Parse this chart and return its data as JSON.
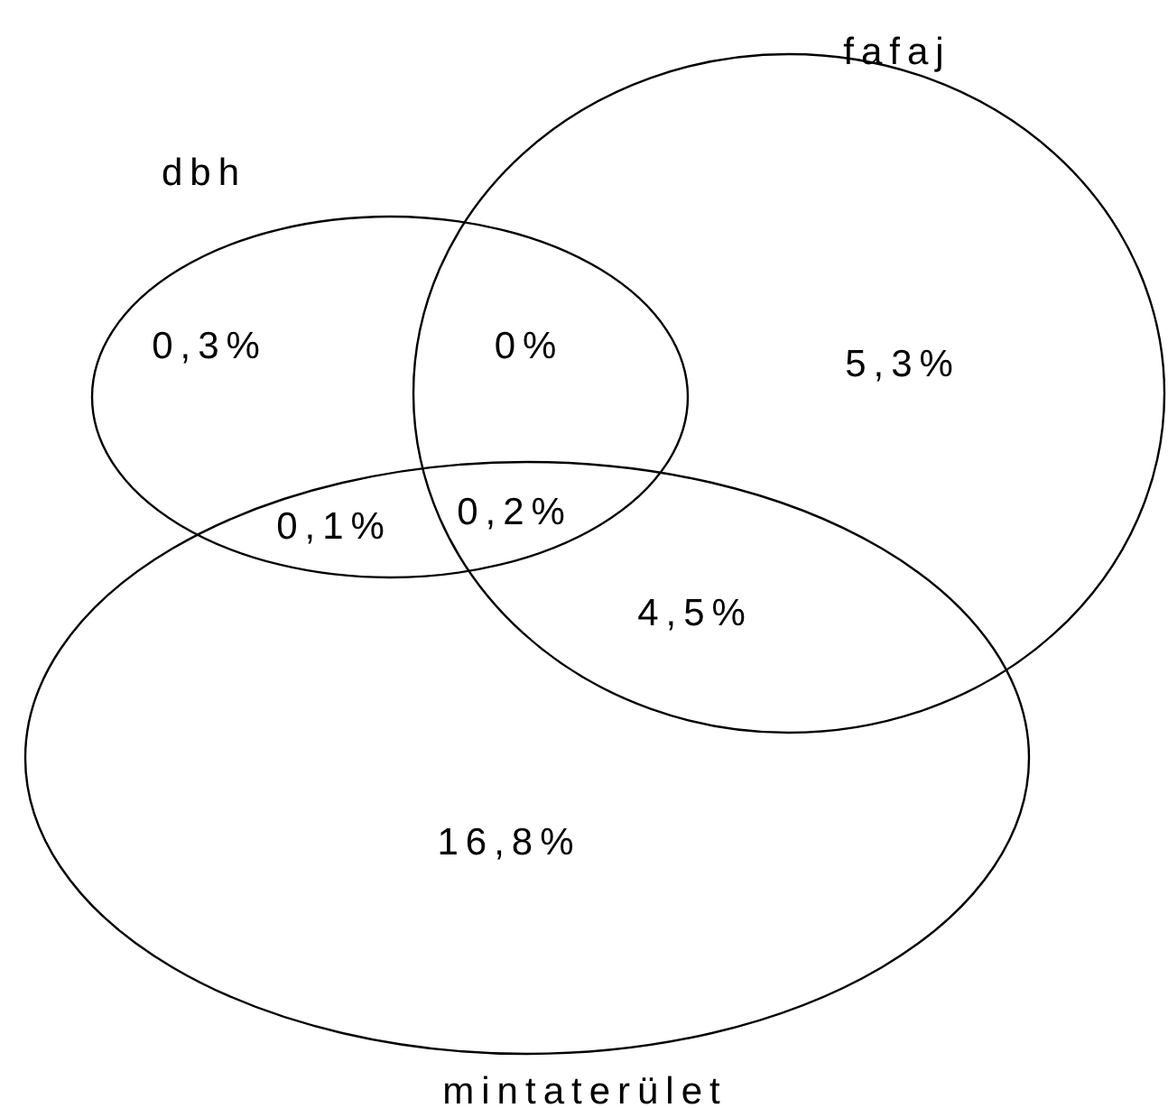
{
  "chart_data": {
    "type": "other",
    "annotations": [
      "dbh",
      "fafaj",
      "mintaterület"
    ],
    "categories": [
      null,
      null,
      null,
      null,
      null,
      null,
      null
    ],
    "values": [
      0.3,
      0,
      5.3,
      0.1,
      0.2,
      4.5,
      16.8
    ],
    "value_labels": [
      "0,3%",
      "0%",
      "5,3%",
      "0,1%",
      "0,2%",
      "4,5%",
      "16,8%"
    ]
  }
}
